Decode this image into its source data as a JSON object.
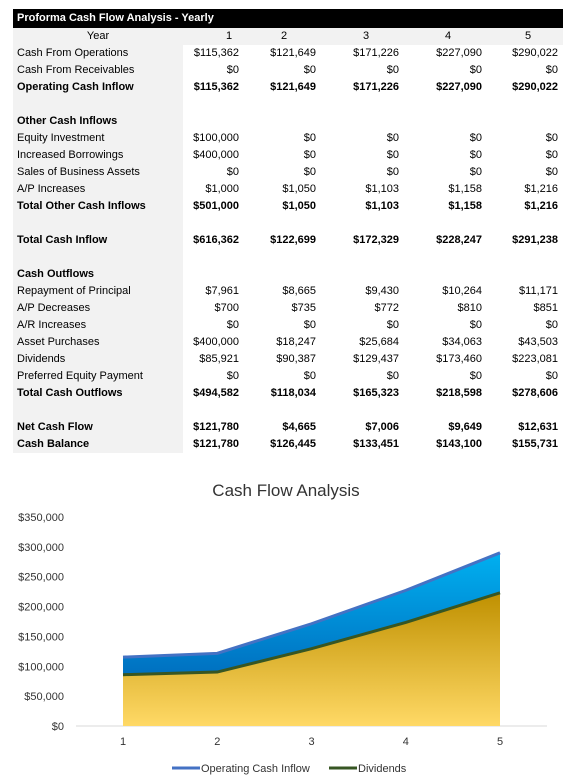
{
  "table": {
    "title": "Proforma Cash Flow Analysis - Yearly",
    "header": {
      "label": "Year",
      "values": [
        "1",
        "2",
        "3",
        "4",
        "5"
      ]
    },
    "rows": [
      {
        "label": "Cash From Operations",
        "values": [
          "$115,362",
          "$121,649",
          "$171,226",
          "$227,090",
          "$290,022"
        ],
        "bold": false
      },
      {
        "label": "Cash From Receivables",
        "values": [
          "$0",
          "$0",
          "$0",
          "$0",
          "$0"
        ],
        "bold": false
      },
      {
        "label": "Operating Cash Inflow",
        "values": [
          "$115,362",
          "$121,649",
          "$171,226",
          "$227,090",
          "$290,022"
        ],
        "bold": true
      },
      {
        "label": "",
        "values": [
          "",
          "",
          "",
          "",
          ""
        ],
        "bold": false
      },
      {
        "label": "Other Cash Inflows",
        "values": [
          "",
          "",
          "",
          "",
          ""
        ],
        "bold": true
      },
      {
        "label": "Equity Investment",
        "values": [
          "$100,000",
          "$0",
          "$0",
          "$0",
          "$0"
        ],
        "bold": false
      },
      {
        "label": "Increased Borrowings",
        "values": [
          "$400,000",
          "$0",
          "$0",
          "$0",
          "$0"
        ],
        "bold": false
      },
      {
        "label": "Sales of Business Assets",
        "values": [
          "$0",
          "$0",
          "$0",
          "$0",
          "$0"
        ],
        "bold": false
      },
      {
        "label": "A/P Increases",
        "values": [
          "$1,000",
          "$1,050",
          "$1,103",
          "$1,158",
          "$1,216"
        ],
        "bold": false
      },
      {
        "label": "Total Other Cash Inflows",
        "values": [
          "$501,000",
          "$1,050",
          "$1,103",
          "$1,158",
          "$1,216"
        ],
        "bold": true
      },
      {
        "label": "",
        "values": [
          "",
          "",
          "",
          "",
          ""
        ],
        "bold": false
      },
      {
        "label": "Total Cash Inflow",
        "values": [
          "$616,362",
          "$122,699",
          "$172,329",
          "$228,247",
          "$291,238"
        ],
        "bold": true
      },
      {
        "label": "",
        "values": [
          "",
          "",
          "",
          "",
          ""
        ],
        "bold": false
      },
      {
        "label": "Cash Outflows",
        "values": [
          "",
          "",
          "",
          "",
          ""
        ],
        "bold": true
      },
      {
        "label": "Repayment of Principal",
        "values": [
          "$7,961",
          "$8,665",
          "$9,430",
          "$10,264",
          "$11,171"
        ],
        "bold": false
      },
      {
        "label": "A/P Decreases",
        "values": [
          "$700",
          "$735",
          "$772",
          "$810",
          "$851"
        ],
        "bold": false
      },
      {
        "label": "A/R Increases",
        "values": [
          "$0",
          "$0",
          "$0",
          "$0",
          "$0"
        ],
        "bold": false
      },
      {
        "label": "Asset Purchases",
        "values": [
          "$400,000",
          "$18,247",
          "$25,684",
          "$34,063",
          "$43,503"
        ],
        "bold": false
      },
      {
        "label": "Dividends",
        "values": [
          "$85,921",
          "$90,387",
          "$129,437",
          "$173,460",
          "$223,081"
        ],
        "bold": false
      },
      {
        "label": "Preferred Equity Payment",
        "values": [
          "$0",
          "$0",
          "$0",
          "$0",
          "$0"
        ],
        "bold": false
      },
      {
        "label": "Total Cash Outflows",
        "values": [
          "$494,582",
          "$118,034",
          "$165,323",
          "$218,598",
          "$278,606"
        ],
        "bold": true
      },
      {
        "label": "",
        "values": [
          "",
          "",
          "",
          "",
          ""
        ],
        "bold": false
      },
      {
        "label": "Net Cash Flow",
        "values": [
          "$121,780",
          "$4,665",
          "$7,006",
          "$9,649",
          "$12,631"
        ],
        "bold": true
      },
      {
        "label": "Cash Balance",
        "values": [
          "$121,780",
          "$126,445",
          "$133,451",
          "$143,100",
          "$155,731"
        ],
        "bold": true
      }
    ]
  },
  "chart_data": {
    "type": "area",
    "title": "Cash Flow Analysis",
    "categories": [
      "1",
      "2",
      "3",
      "4",
      "5"
    ],
    "series": [
      {
        "name": "Operating Cash Inflow",
        "values": [
          115362,
          121649,
          171226,
          227090,
          290022
        ],
        "color": "#4472c4"
      },
      {
        "name": "Dividends",
        "values": [
          85921,
          90387,
          129437,
          173460,
          223081
        ],
        "color": "#375623"
      }
    ],
    "ylim": [
      0,
      350000
    ],
    "y_ticks": [
      "$0",
      "$50,000",
      "$100,000",
      "$150,000",
      "$200,000",
      "$250,000",
      "$300,000",
      "$350,000"
    ],
    "y_tick_values": [
      0,
      50000,
      100000,
      150000,
      200000,
      250000,
      300000,
      350000
    ],
    "legend_position": "bottom",
    "grid": false,
    "fill_colors": {
      "upper_top": "#00b0f0",
      "upper_bottom": "#0070c0",
      "lower_top": "#bf9000",
      "lower_bottom": "#ffd966"
    }
  }
}
